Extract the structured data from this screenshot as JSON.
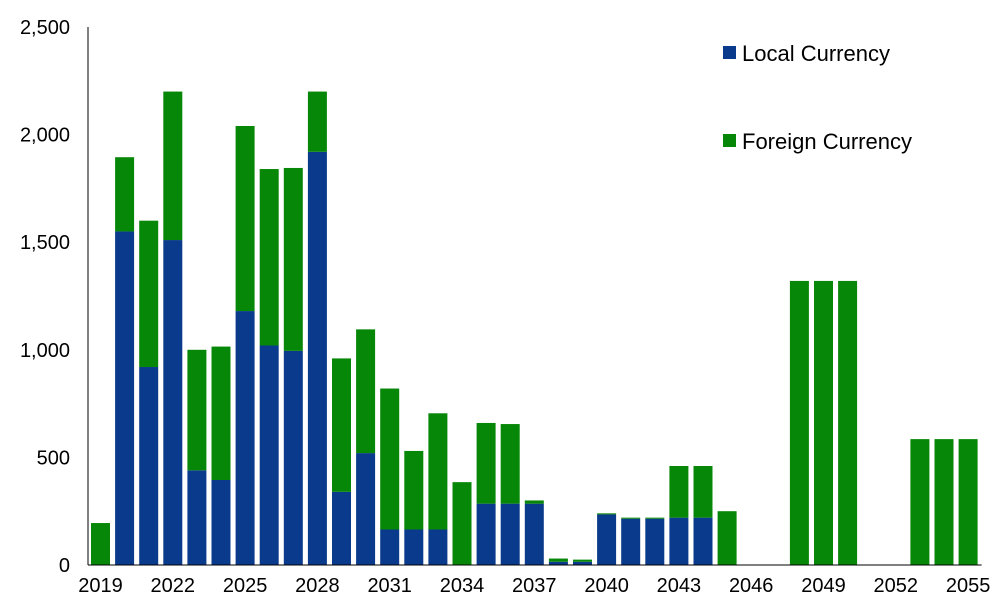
{
  "chart_data": {
    "type": "bar",
    "stacked": true,
    "title": "",
    "xlabel": "",
    "ylabel": "",
    "ylim": [
      0,
      2500
    ],
    "yticks": [
      0,
      500,
      1000,
      1500,
      2000,
      2500
    ],
    "ytick_labels": [
      "0",
      "500",
      "1,000",
      "1,500",
      "2,000",
      "2,500"
    ],
    "grid": false,
    "legend_position": "top-right",
    "categories": [
      "2019",
      "2020",
      "2021",
      "2022",
      "2023",
      "2024",
      "2025",
      "2026",
      "2027",
      "2028",
      "2029",
      "2030",
      "2031",
      "2032",
      "2033",
      "2034",
      "2035",
      "2036",
      "2037",
      "2038",
      "2039",
      "2040",
      "2041",
      "2042",
      "2043",
      "2044",
      "2045",
      "2046",
      "2047",
      "2048",
      "2049",
      "2050",
      "2051",
      "2052",
      "2053",
      "2054",
      "2055"
    ],
    "xtick_labels": [
      "2019",
      "2022",
      "2025",
      "2028",
      "2031",
      "2034",
      "2037",
      "2040",
      "2043",
      "2046",
      "2049",
      "2052",
      "2055"
    ],
    "series": [
      {
        "name": "Local Currency",
        "color": "#0a3a8c",
        "values": [
          0,
          1550,
          920,
          1510,
          440,
          395,
          1180,
          1020,
          995,
          1920,
          340,
          520,
          165,
          165,
          165,
          0,
          285,
          285,
          285,
          15,
          15,
          235,
          215,
          215,
          220,
          220,
          0,
          0,
          0,
          0,
          0,
          0,
          0,
          0,
          0,
          0,
          0
        ]
      },
      {
        "name": "Foreign Currency",
        "color": "#078707",
        "values": [
          195,
          345,
          680,
          690,
          560,
          620,
          860,
          820,
          850,
          280,
          620,
          575,
          655,
          365,
          540,
          385,
          375,
          370,
          15,
          15,
          10,
          5,
          5,
          5,
          240,
          240,
          250,
          0,
          0,
          1320,
          1320,
          1320,
          0,
          0,
          585,
          585,
          585
        ]
      }
    ]
  }
}
